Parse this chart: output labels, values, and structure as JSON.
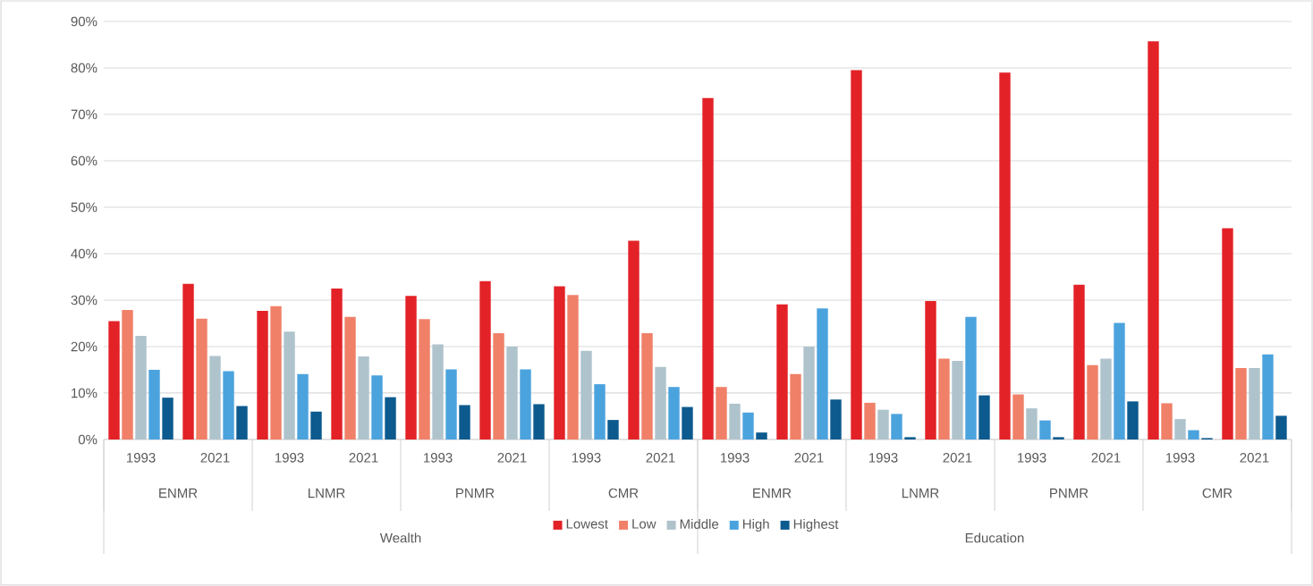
{
  "chart_data": {
    "type": "bar",
    "categories": [
      "1993",
      "2021",
      "1993",
      "2021",
      "1993",
      "2021",
      "1993",
      "2021",
      "1993",
      "2021",
      "1993",
      "2021",
      "1993",
      "2021",
      "1993",
      "2021"
    ],
    "series": [
      {
        "name": "Lowest",
        "color": "#e32227",
        "values": [
          25.5,
          33.5,
          27.7,
          32.5,
          30.9,
          34.1,
          33.0,
          42.8,
          73.5,
          29.1,
          79.5,
          29.8,
          79.0,
          33.3,
          85.7,
          45.5
        ]
      },
      {
        "name": "Low",
        "color": "#f08068",
        "values": [
          27.9,
          26.0,
          28.7,
          26.4,
          25.9,
          22.9,
          31.1,
          22.9,
          11.3,
          14.1,
          7.9,
          17.4,
          9.7,
          16.0,
          7.8,
          15.4
        ]
      },
      {
        "name": "Middle",
        "color": "#afc3cc",
        "values": [
          22.3,
          18.0,
          23.2,
          17.9,
          20.5,
          20.0,
          19.1,
          15.6,
          7.7,
          20.0,
          6.4,
          16.9,
          6.7,
          17.4,
          4.4,
          15.4
        ]
      },
      {
        "name": "High",
        "color": "#4ba3de",
        "values": [
          15.0,
          14.7,
          14.1,
          13.8,
          15.1,
          15.1,
          11.9,
          11.3,
          5.8,
          28.2,
          5.5,
          26.4,
          4.1,
          25.1,
          2.0,
          18.3
        ]
      },
      {
        "name": "Highest",
        "color": "#0c5a8e",
        "values": [
          9.0,
          7.2,
          6.0,
          9.1,
          7.4,
          7.6,
          4.2,
          7.0,
          1.5,
          8.6,
          0.5,
          9.5,
          0.5,
          8.2,
          0.3,
          5.1
        ]
      }
    ],
    "annotations": [
      "ENMR",
      "LNMR",
      "PNMR",
      "CMR",
      "ENMR",
      "LNMR",
      "PNMR",
      "CMR",
      "Wealth",
      "Education"
    ],
    "ylim": [
      0,
      90
    ],
    "yticks": [
      {
        "value": 0,
        "label": "0%"
      },
      {
        "value": 10,
        "label": "10%"
      },
      {
        "value": 20,
        "label": "20%"
      },
      {
        "value": 30,
        "label": "30%"
      },
      {
        "value": 40,
        "label": "40%"
      },
      {
        "value": 50,
        "label": "50%"
      },
      {
        "value": 60,
        "label": "60%"
      },
      {
        "value": 70,
        "label": "70%"
      },
      {
        "value": 80,
        "label": "80%"
      },
      {
        "value": 90,
        "label": "90%"
      }
    ],
    "grid": "y",
    "legend": "bottom"
  }
}
